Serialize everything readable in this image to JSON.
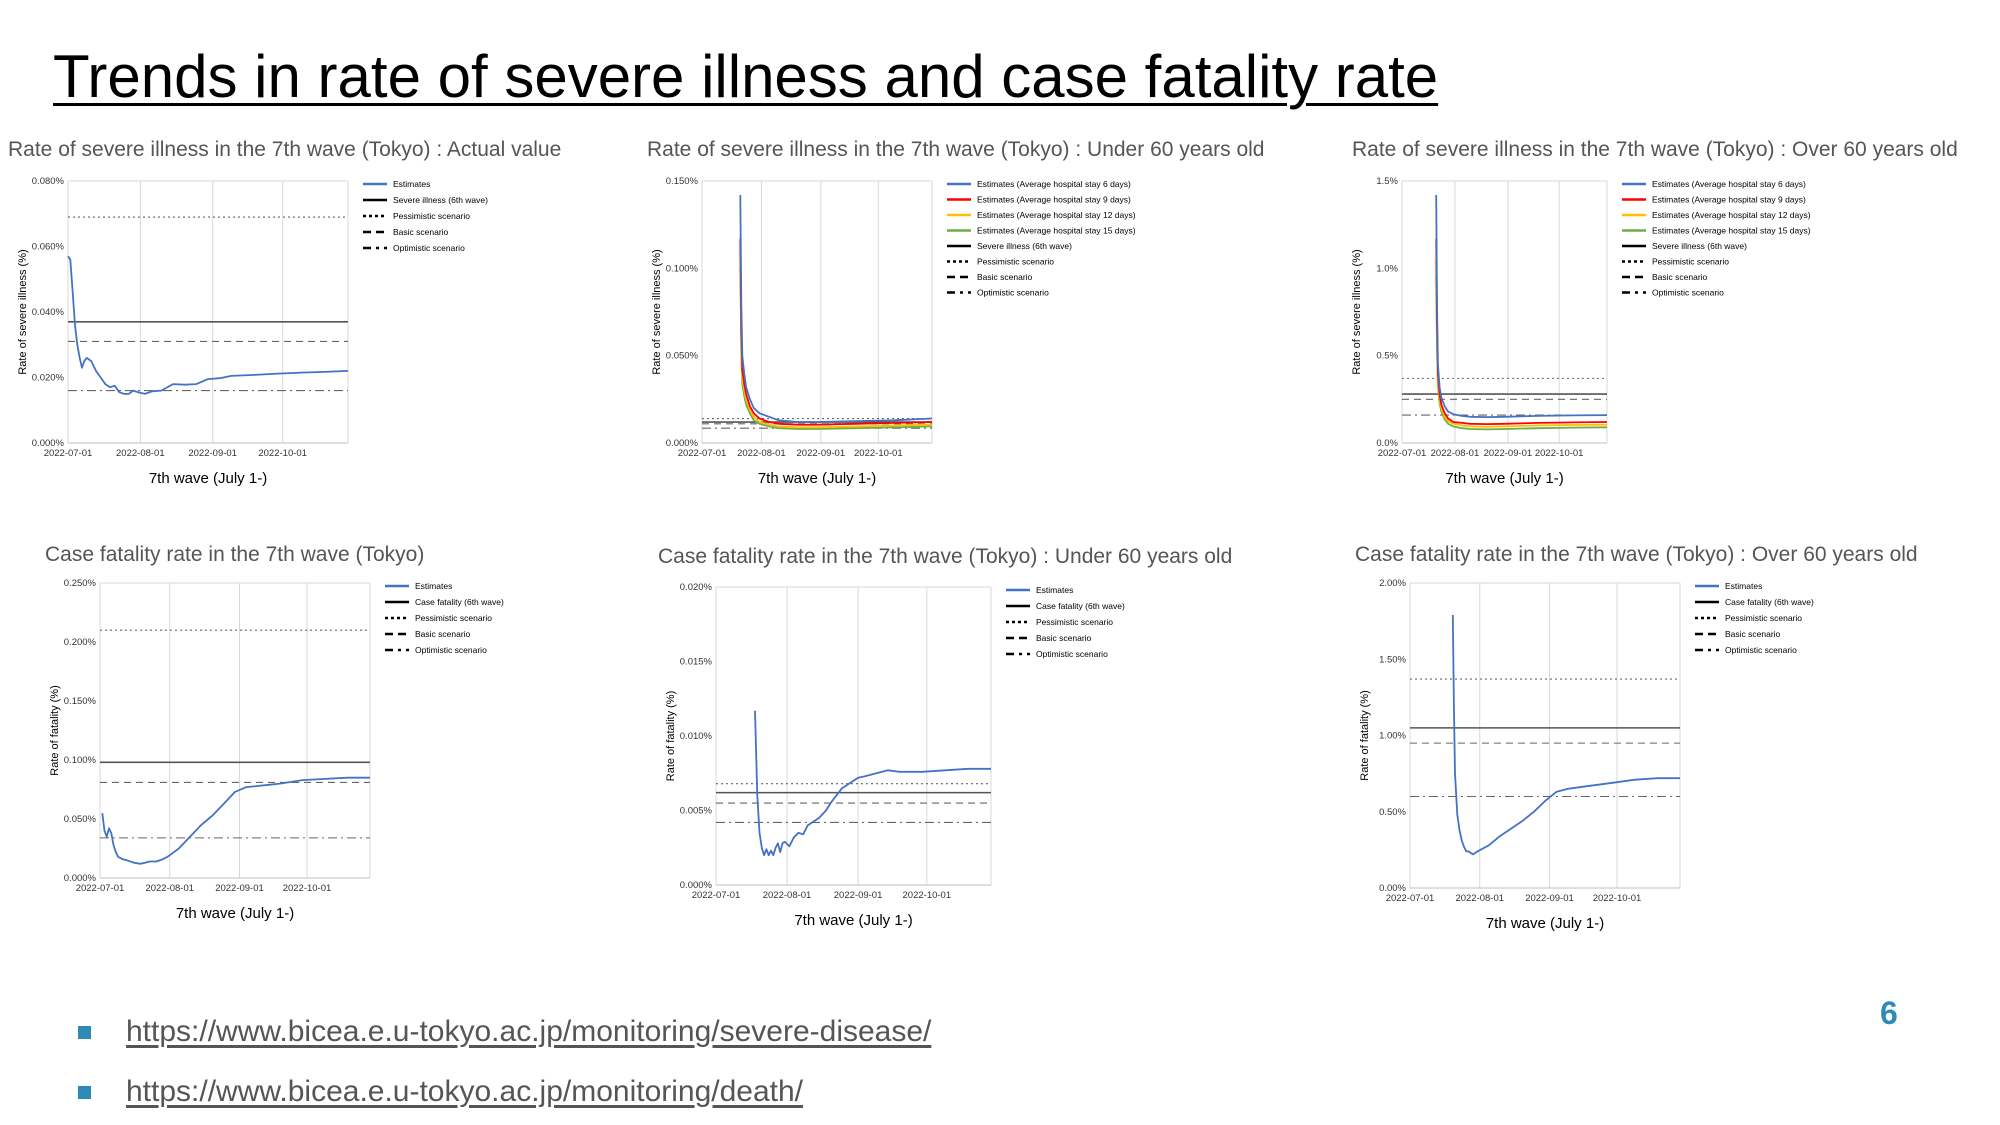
{
  "slide": {
    "title": "Trends in rate of severe illness and case fatality rate",
    "page_number": "6",
    "links": [
      "https://www.bicea.e.u-tokyo.ac.jp/monitoring/severe-disease/",
      "https://www.bicea.e.u-tokyo.ac.jp/monitoring/death/"
    ],
    "bullet_color": "#2e8bb8"
  },
  "chart_data": [
    {
      "type": "line",
      "title": "Rate of severe illness in the 7th wave (Tokyo) : Actual value",
      "xlabel": "7th wave (July 1-)",
      "ylabel": "Rate of severe illness (%)",
      "x_ticks": [
        "2022-07-01",
        "2022-08-01",
        "2022-09-01",
        "2022-10-01"
      ],
      "y_ticks": [
        "0.000%",
        "0.020%",
        "0.040%",
        "0.060%",
        "0.080%"
      ],
      "ylim": [
        0,
        0.08
      ],
      "xlim": [
        0,
        120
      ],
      "grid": true,
      "legend_position": "right",
      "series": [
        {
          "name": "Estimates",
          "color": "#4472c4",
          "style": "solid",
          "x": [
            0,
            1,
            2,
            3,
            4,
            5,
            6,
            7,
            8,
            10,
            12,
            14,
            16,
            18,
            20,
            22,
            24,
            26,
            28,
            30,
            33,
            36,
            40,
            45,
            50,
            55,
            60,
            65,
            70,
            80,
            90,
            100,
            110,
            120
          ],
          "values": [
            0.057,
            0.056,
            0.046,
            0.036,
            0.03,
            0.026,
            0.023,
            0.025,
            0.026,
            0.025,
            0.022,
            0.02,
            0.018,
            0.017,
            0.0175,
            0.0155,
            0.015,
            0.015,
            0.016,
            0.0155,
            0.015,
            0.0158,
            0.016,
            0.018,
            0.0178,
            0.018,
            0.0195,
            0.0198,
            0.0205,
            0.0208,
            0.0212,
            0.0215,
            0.0217,
            0.022
          ]
        }
      ],
      "reference_lines": [
        {
          "name": "Severe illness (6th wave)",
          "value": 0.037,
          "style": "solid"
        },
        {
          "name": "Pessimistic scenario",
          "value": 0.069,
          "style": "dotted"
        },
        {
          "name": "Basic scenario",
          "value": 0.031,
          "style": "dashed"
        },
        {
          "name": "Optimistic scenario",
          "value": 0.016,
          "style": "dashdot"
        }
      ]
    },
    {
      "type": "line",
      "title": "Rate of severe illness in the 7th wave (Tokyo) : Under 60 years old",
      "xlabel": "7th wave (July 1-)",
      "ylabel": "Rate of severe illness (%)",
      "x_ticks": [
        "2022-07-01",
        "2022-08-01",
        "2022-09-01",
        "2022-10-01"
      ],
      "y_ticks": [
        "0.000%",
        "0.050%",
        "0.100%",
        "0.150%"
      ],
      "ylim": [
        0,
        0.15
      ],
      "xlim": [
        0,
        120
      ],
      "grid": true,
      "legend_position": "right",
      "series": [
        {
          "name": "Estimates (Average hospital stay 6 days)",
          "color": "#4472c4",
          "style": "solid",
          "x": [
            20,
            20.5,
            21,
            22,
            23,
            25,
            27,
            30,
            35,
            40,
            50,
            60,
            80,
            100,
            120
          ],
          "values": [
            0.142,
            0.08,
            0.05,
            0.04,
            0.032,
            0.025,
            0.02,
            0.017,
            0.015,
            0.013,
            0.012,
            0.012,
            0.0125,
            0.013,
            0.014
          ]
        },
        {
          "name": "Estimates (Average hospital stay 9 days)",
          "color": "#ff0000",
          "style": "solid",
          "x": [
            20,
            20.5,
            21,
            22,
            23,
            25,
            27,
            30,
            35,
            40,
            50,
            60,
            80,
            100,
            120
          ],
          "values": [
            0.117,
            0.065,
            0.042,
            0.034,
            0.028,
            0.021,
            0.017,
            0.014,
            0.012,
            0.011,
            0.0105,
            0.0105,
            0.011,
            0.0115,
            0.012
          ]
        },
        {
          "name": "Estimates (Average hospital stay 12 days)",
          "color": "#ffc000",
          "style": "solid",
          "x": [
            20,
            20.5,
            21,
            22,
            23,
            25,
            27,
            30,
            35,
            40,
            50,
            60,
            80,
            100,
            120
          ],
          "values": [
            0.11,
            0.058,
            0.038,
            0.03,
            0.025,
            0.019,
            0.015,
            0.012,
            0.0105,
            0.0095,
            0.009,
            0.009,
            0.0095,
            0.01,
            0.0105
          ]
        },
        {
          "name": "Estimates (Average hospital stay 15 days)",
          "color": "#70ad47",
          "style": "solid",
          "x": [
            20,
            20.5,
            21,
            22,
            23,
            25,
            27,
            30,
            35,
            40,
            50,
            60,
            80,
            100,
            120
          ],
          "values": [
            0.1,
            0.052,
            0.034,
            0.027,
            0.022,
            0.017,
            0.013,
            0.011,
            0.0095,
            0.0085,
            0.008,
            0.008,
            0.0085,
            0.009,
            0.0095
          ]
        }
      ],
      "reference_lines": [
        {
          "name": "Severe illness (6th wave)",
          "value": 0.012,
          "style": "solid"
        },
        {
          "name": "Pessimistic scenario",
          "value": 0.014,
          "style": "dotted"
        },
        {
          "name": "Basic scenario",
          "value": 0.011,
          "style": "dashed"
        },
        {
          "name": "Optimistic scenario",
          "value": 0.0085,
          "style": "dashdot"
        }
      ]
    },
    {
      "type": "line",
      "title": "Rate of severe illness in the 7th wave (Tokyo) : Over 60 years old",
      "xlabel": "7th wave (July 1-)",
      "ylabel": "Rate of severe illness (%)",
      "x_ticks": [
        "2022-07-01",
        "2022-08-01",
        "2022-09-01",
        "2022-10-01"
      ],
      "y_ticks": [
        "0.0%",
        "0.5%",
        "1.0%",
        "1.5%"
      ],
      "ylim": [
        0,
        1.5
      ],
      "xlim": [
        0,
        120
      ],
      "grid": true,
      "legend_position": "right",
      "series": [
        {
          "name": "Estimates (Average hospital stay 6 days)",
          "color": "#4472c4",
          "style": "solid",
          "x": [
            20,
            20.5,
            21,
            22,
            23,
            25,
            27,
            30,
            35,
            40,
            50,
            60,
            80,
            100,
            120
          ],
          "values": [
            1.42,
            0.8,
            0.45,
            0.32,
            0.26,
            0.21,
            0.18,
            0.165,
            0.155,
            0.15,
            0.148,
            0.15,
            0.155,
            0.158,
            0.16
          ]
        },
        {
          "name": "Estimates (Average hospital stay 9 days)",
          "color": "#ff0000",
          "style": "solid",
          "x": [
            20,
            20.5,
            21,
            22,
            23,
            25,
            27,
            30,
            35,
            40,
            50,
            60,
            80,
            100,
            120
          ],
          "values": [
            1.17,
            0.68,
            0.4,
            0.28,
            0.22,
            0.17,
            0.14,
            0.12,
            0.115,
            0.11,
            0.108,
            0.11,
            0.115,
            0.118,
            0.12
          ]
        },
        {
          "name": "Estimates (Average hospital stay 12 days)",
          "color": "#ffc000",
          "style": "solid",
          "x": [
            20,
            20.5,
            21,
            22,
            23,
            25,
            27,
            30,
            35,
            40,
            50,
            60,
            80,
            100,
            120
          ],
          "values": [
            1.05,
            0.6,
            0.36,
            0.25,
            0.2,
            0.15,
            0.125,
            0.11,
            0.1,
            0.095,
            0.093,
            0.095,
            0.1,
            0.103,
            0.105
          ]
        },
        {
          "name": "Estimates (Average hospital stay 15 days)",
          "color": "#70ad47",
          "style": "solid",
          "x": [
            20,
            20.5,
            21,
            22,
            23,
            25,
            27,
            30,
            35,
            40,
            50,
            60,
            80,
            100,
            120
          ],
          "values": [
            0.95,
            0.55,
            0.33,
            0.23,
            0.18,
            0.135,
            0.11,
            0.095,
            0.085,
            0.08,
            0.078,
            0.08,
            0.085,
            0.088,
            0.09
          ]
        }
      ],
      "reference_lines": [
        {
          "name": "Severe illness (6th wave)",
          "value": 0.28,
          "style": "solid"
        },
        {
          "name": "Pessimistic scenario",
          "value": 0.37,
          "style": "dotted"
        },
        {
          "name": "Basic scenario",
          "value": 0.25,
          "style": "dashed"
        },
        {
          "name": "Optimistic scenario",
          "value": 0.16,
          "style": "dashdot"
        }
      ]
    },
    {
      "type": "line",
      "title": "Case fatality rate in the 7th wave (Tokyo)",
      "xlabel": "7th wave (July 1-)",
      "ylabel": "Rate of fatality (%)",
      "x_ticks": [
        "2022-07-01",
        "2022-08-01",
        "2022-09-01",
        "2022-10-01"
      ],
      "y_ticks": [
        "0.000%",
        "0.050%",
        "0.100%",
        "0.150%",
        "0.200%",
        "0.250%"
      ],
      "ylim": [
        0,
        0.25
      ],
      "xlim": [
        0,
        120
      ],
      "grid": true,
      "legend_position": "right",
      "series": [
        {
          "name": "Estimates",
          "color": "#4472c4",
          "style": "solid",
          "x": [
            1,
            2,
            3,
            4,
            5,
            6,
            7,
            8,
            10,
            12,
            15,
            18,
            20,
            22,
            25,
            28,
            30,
            35,
            40,
            45,
            50,
            55,
            60,
            65,
            70,
            75,
            80,
            90,
            100,
            110,
            120
          ],
          "values": [
            0.055,
            0.04,
            0.035,
            0.042,
            0.038,
            0.028,
            0.022,
            0.018,
            0.016,
            0.015,
            0.013,
            0.012,
            0.013,
            0.014,
            0.014,
            0.016,
            0.018,
            0.025,
            0.035,
            0.045,
            0.053,
            0.063,
            0.073,
            0.077,
            0.078,
            0.079,
            0.08,
            0.083,
            0.084,
            0.085,
            0.085
          ]
        }
      ],
      "reference_lines": [
        {
          "name": "Case fatality (6th wave)",
          "value": 0.098,
          "style": "solid"
        },
        {
          "name": "Pessimistic scenario",
          "value": 0.21,
          "style": "dotted"
        },
        {
          "name": "Basic scenario",
          "value": 0.081,
          "style": "dashed"
        },
        {
          "name": "Optimistic scenario",
          "value": 0.034,
          "style": "dashdot"
        }
      ]
    },
    {
      "type": "line",
      "title": "Case fatality rate in the 7th wave (Tokyo) : Under 60 years old",
      "xlabel": "7th wave (July 1-)",
      "ylabel": "Rate of fatality (%)",
      "x_ticks": [
        "2022-07-01",
        "2022-08-01",
        "2022-09-01",
        "2022-10-01"
      ],
      "y_ticks": [
        "0.000%",
        "0.005%",
        "0.010%",
        "0.015%",
        "0.020%"
      ],
      "ylim": [
        0,
        0.02
      ],
      "xlim": [
        0,
        120
      ],
      "grid": true,
      "legend_position": "right",
      "series": [
        {
          "name": "Estimates",
          "color": "#4472c4",
          "style": "solid",
          "x": [
            17,
            18,
            19,
            20,
            21,
            22,
            23,
            24,
            25,
            26,
            27,
            28,
            29,
            30,
            32,
            34,
            36,
            38,
            40,
            42,
            45,
            48,
            50,
            55,
            60,
            62,
            65,
            70,
            75,
            80,
            90,
            100,
            110,
            120
          ],
          "values": [
            0.0117,
            0.006,
            0.0035,
            0.0025,
            0.002,
            0.0024,
            0.002,
            0.0023,
            0.002,
            0.0025,
            0.0028,
            0.0022,
            0.0028,
            0.0029,
            0.0026,
            0.0032,
            0.0035,
            0.0034,
            0.004,
            0.0042,
            0.0045,
            0.005,
            0.0055,
            0.0065,
            0.007,
            0.0072,
            0.0073,
            0.0075,
            0.0077,
            0.0076,
            0.0076,
            0.0077,
            0.0078,
            0.0078
          ]
        }
      ],
      "reference_lines": [
        {
          "name": "Case fatality (6th wave)",
          "value": 0.0062,
          "style": "solid"
        },
        {
          "name": "Pessimistic scenario",
          "value": 0.0068,
          "style": "dotted"
        },
        {
          "name": "Basic scenario",
          "value": 0.0055,
          "style": "dashed"
        },
        {
          "name": "Optimistic scenario",
          "value": 0.0042,
          "style": "dashdot"
        }
      ]
    },
    {
      "type": "line",
      "title": "Case fatality rate in the 7th wave (Tokyo) : Over 60 years old",
      "xlabel": "7th wave (July 1-)",
      "ylabel": "Rate of fatality (%)",
      "x_ticks": [
        "2022-07-01",
        "2022-08-01",
        "2022-09-01",
        "2022-10-01"
      ],
      "y_ticks": [
        "0.00%",
        "0.50%",
        "1.00%",
        "1.50%",
        "2.00%"
      ],
      "ylim": [
        0,
        2
      ],
      "xlim": [
        0,
        120
      ],
      "grid": true,
      "legend_position": "right",
      "series": [
        {
          "name": "Estimates",
          "color": "#4472c4",
          "style": "solid",
          "x": [
            19,
            19.5,
            20,
            21,
            22,
            23,
            24,
            25,
            26,
            28,
            30,
            35,
            40,
            45,
            50,
            55,
            60,
            65,
            70,
            75,
            80,
            90,
            100,
            110,
            120
          ],
          "values": [
            1.79,
            1.2,
            0.75,
            0.48,
            0.38,
            0.31,
            0.27,
            0.24,
            0.24,
            0.22,
            0.24,
            0.28,
            0.34,
            0.39,
            0.44,
            0.5,
            0.57,
            0.63,
            0.65,
            0.66,
            0.67,
            0.69,
            0.71,
            0.72,
            0.72
          ]
        }
      ],
      "reference_lines": [
        {
          "name": "Case fatality (6th wave)",
          "value": 1.05,
          "style": "solid"
        },
        {
          "name": "Pessimistic scenario",
          "value": 1.37,
          "style": "dotted"
        },
        {
          "name": "Basic scenario",
          "value": 0.95,
          "style": "dashed"
        },
        {
          "name": "Optimistic scenario",
          "value": 0.6,
          "style": "dashdot"
        }
      ]
    }
  ]
}
